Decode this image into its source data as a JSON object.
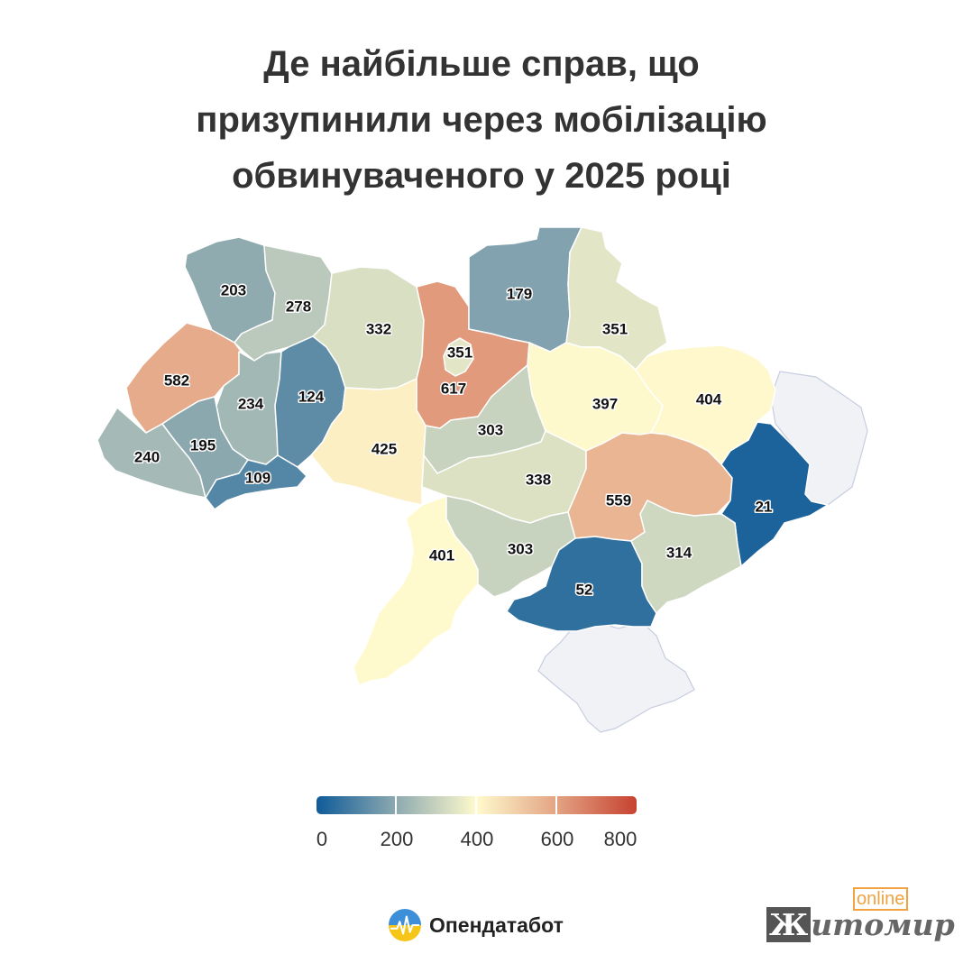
{
  "title_lines": [
    "Де найбільше справ, що",
    "призупинили через мобілізацію",
    "обвинуваченого у 2025 році"
  ],
  "legend": {
    "ticks": [
      "0",
      "200",
      "400",
      "600",
      "800"
    ],
    "min": 0,
    "max": 800
  },
  "brand": {
    "name": "Опендатабот"
  },
  "watermark": {
    "online": "online",
    "name_first": "Ж",
    "name_rest": "итомир"
  },
  "colors": {
    "scale": [
      "#0f5b99",
      "#8eaab0",
      "#fffacd",
      "#e3a383",
      "#c64231"
    ],
    "occupied": "#f1f2f6"
  },
  "regions": [
    {
      "id": "volyn",
      "value": 203
    },
    {
      "id": "rivne",
      "value": 278
    },
    {
      "id": "zhytomyr",
      "value": 332
    },
    {
      "id": "kyiv-oblast",
      "value": 617
    },
    {
      "id": "kyiv-city",
      "value": 351
    },
    {
      "id": "chernihiv",
      "value": 179
    },
    {
      "id": "sumy",
      "value": 351
    },
    {
      "id": "lviv",
      "value": 582
    },
    {
      "id": "ternopil",
      "value": 234
    },
    {
      "id": "khmelnytskyi",
      "value": 124
    },
    {
      "id": "poltava",
      "value": 397
    },
    {
      "id": "kharkiv",
      "value": 404
    },
    {
      "id": "zakarpattia",
      "value": 240
    },
    {
      "id": "ivano-frankivsk",
      "value": 195
    },
    {
      "id": "chernivtsi",
      "value": 109
    },
    {
      "id": "vinnytsia",
      "value": 425
    },
    {
      "id": "cherkasy",
      "value": 303
    },
    {
      "id": "kirovohrad",
      "value": 338
    },
    {
      "id": "dnipropetrovsk",
      "value": 559
    },
    {
      "id": "donetsk",
      "value": 21
    },
    {
      "id": "odesa",
      "value": 401
    },
    {
      "id": "mykolaiv",
      "value": 303
    },
    {
      "id": "kherson",
      "value": 52
    },
    {
      "id": "zaporizhzhia",
      "value": 314
    }
  ]
}
